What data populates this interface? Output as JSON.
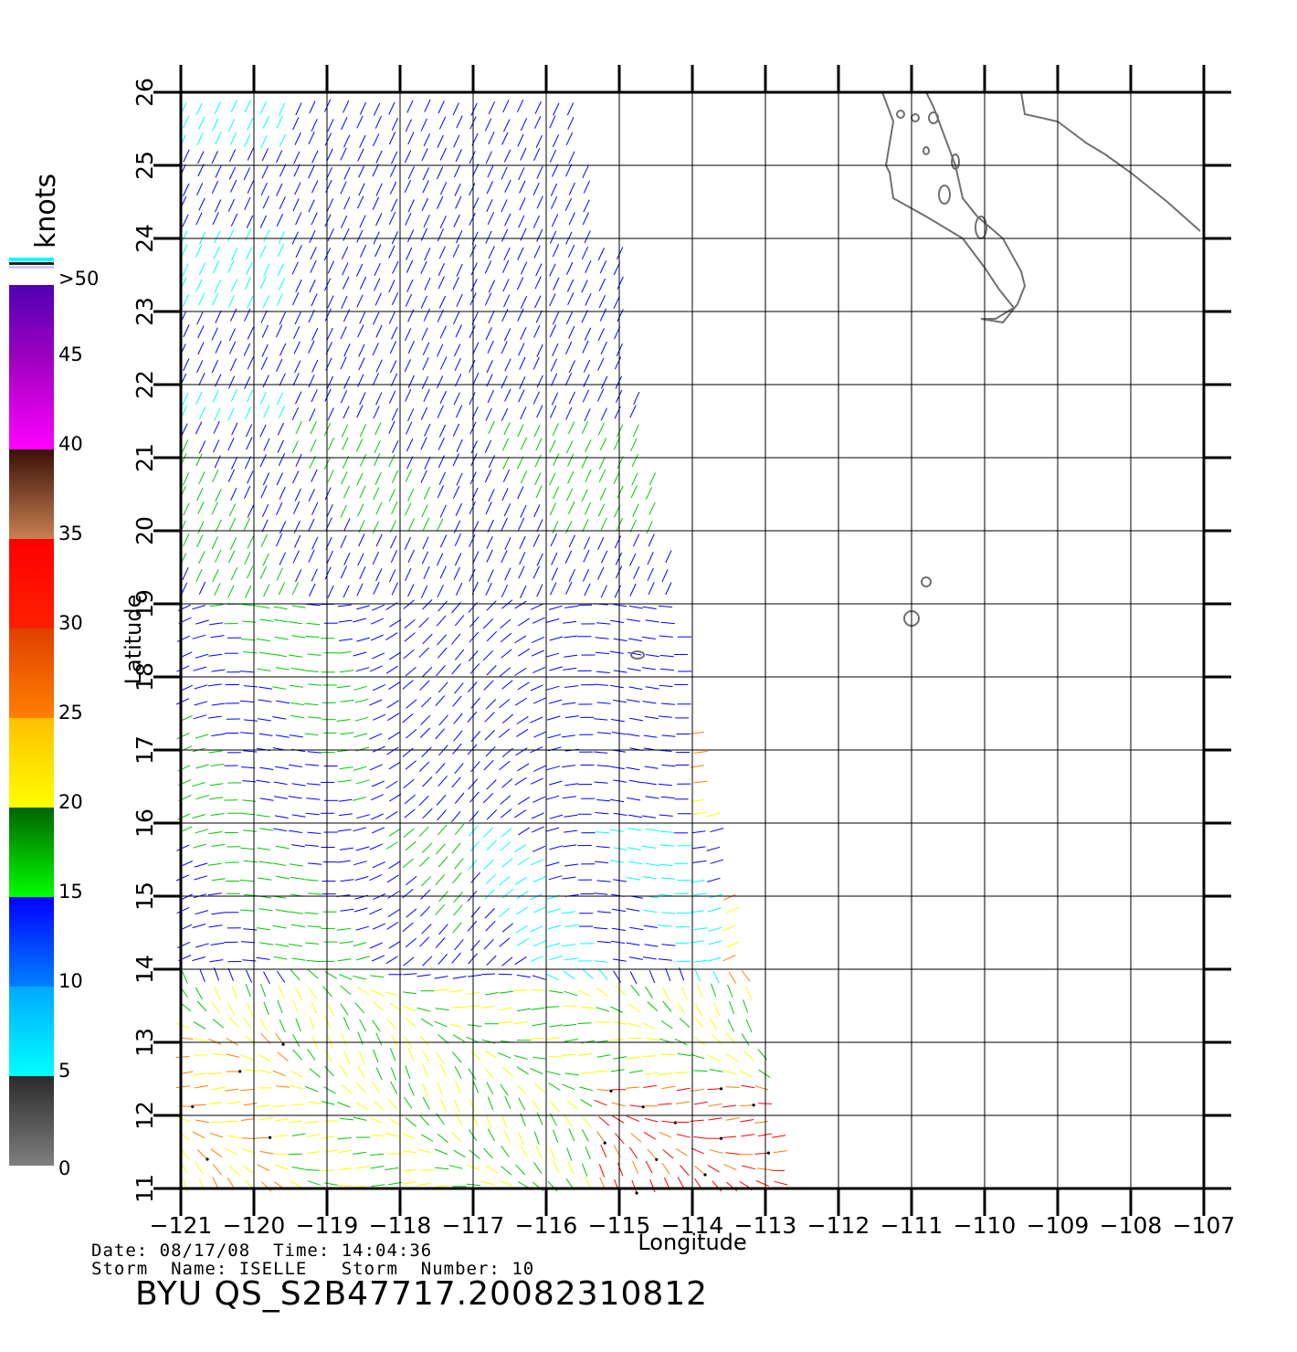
{
  "colorbar": {
    "unit_label": "knots",
    "tick_labels": [
      "0",
      "5",
      "10",
      "15",
      "20",
      "25",
      "30",
      "35",
      "40",
      "45",
      ">50"
    ]
  },
  "axes": {
    "xlabel": "Longitude",
    "ylabel": "Latitude",
    "lon_ticks": [
      -121,
      -120,
      -119,
      -118,
      -117,
      -116,
      -115,
      -114,
      -113,
      -112,
      -111,
      -110,
      -109,
      -108,
      -107
    ],
    "lat_ticks": [
      11,
      12,
      13,
      14,
      15,
      16,
      17,
      18,
      19,
      20,
      21,
      22,
      23,
      24,
      25,
      26
    ],
    "lon_range": [
      -121,
      -107
    ],
    "lat_range": [
      11,
      26
    ],
    "grid": true
  },
  "footer": {
    "date_label": "Date:",
    "date": "08/17/08",
    "time_label": "Time:",
    "time": "14:04:36",
    "storm_name_label": "Storm  Name:",
    "storm_name": "ISELLE",
    "storm_number_label": "Storm  Number:",
    "storm_number": "10",
    "title": "BYU  QS_S2B47717.20082310812"
  },
  "colors": {
    "speed_0_5": "#808080",
    "speed_5_10": "#00ffff",
    "speed_10_15": "#0000ff",
    "speed_15_20": "#00c800",
    "speed_20_25": "#ffff00",
    "speed_25_30": "#ff8000",
    "speed_30_35": "#ff0000",
    "speed_35_40": "#8b4513",
    "speed_40_50": "#ff00ff",
    "speed_over_50": "#5000b4",
    "coastline": "#707070"
  }
}
